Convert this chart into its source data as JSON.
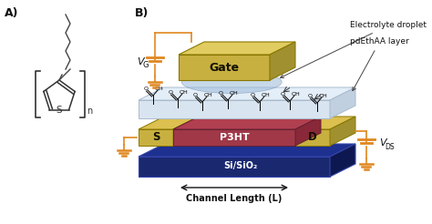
{
  "panel_A_label": "A)",
  "panel_B_label": "B)",
  "background_color": "#ffffff",
  "gate_label": "Gate",
  "source_label": "S",
  "drain_label": "D",
  "semiconductor_label": "P3HT",
  "substrate_label": "Si/SiO₂",
  "channel_label": "Channel Length (L)",
  "electrolyte_label": "Electrolyte droplet",
  "pdethaa_label": "pdEthAA layer",
  "vg_label": "V",
  "vg_sub": "G",
  "vds_label": "V",
  "vds_sub": "DS",
  "gate_face_color": "#c8b040",
  "gate_top_color": "#e0cc60",
  "gate_side_color": "#a09030",
  "src_drn_face_color": "#c8b040",
  "src_drn_top_color": "#dcc050",
  "src_drn_side_color": "#a09030",
  "p3ht_face_color": "#a03848",
  "p3ht_top_color": "#b04050",
  "p3ht_side_color": "#882838",
  "sub_face_color": "#1a2870",
  "sub_top_color": "#1e3090",
  "sub_side_color": "#0e1850",
  "pde_face_color": "#d8e4f0",
  "pde_top_color": "#e4eef8",
  "pde_side_color": "#c0d0e0",
  "elec_color": "#9ab8d8",
  "wire_color": "#e08820",
  "text_color": "#111111",
  "figsize": [
    4.74,
    2.46
  ],
  "dpi": 100
}
